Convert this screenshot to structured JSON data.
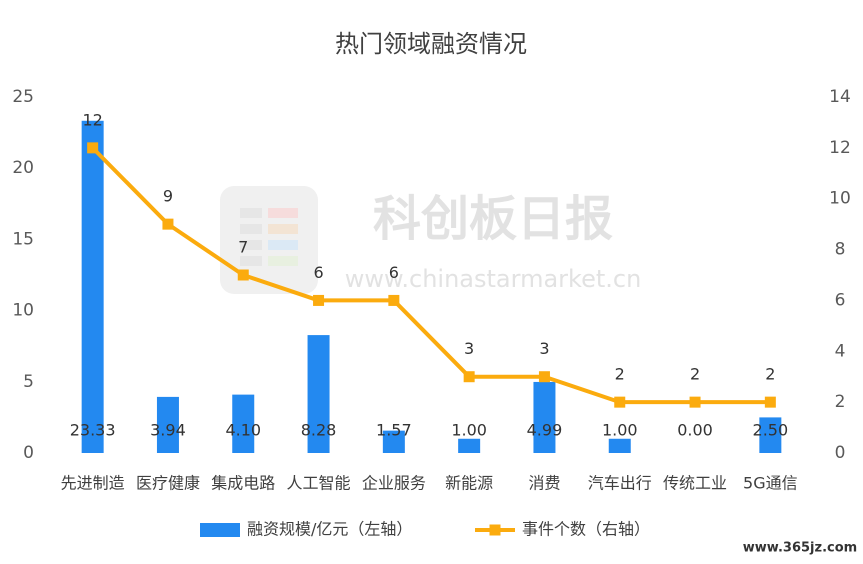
{
  "chart_data": {
    "type": "combo",
    "title": "热门领域融资情况",
    "annotations": [
      "科创板日报",
      "www.chinastarmarket.cn",
      "www.365jz.com"
    ],
    "categories": [
      "先进制造",
      "医疗健康",
      "集成电路",
      "人工智能",
      "企业服务",
      "新能源",
      "消费",
      "汽车出行",
      "传统工业",
      "5G通信"
    ],
    "series": [
      {
        "name": "融资规模/亿元（左轴）",
        "type": "bar",
        "color": "#2389f0",
        "values": [
          23.33,
          3.94,
          4.1,
          8.28,
          1.57,
          1.0,
          4.99,
          1.0,
          0.0,
          2.5
        ],
        "value_labels": [
          "23.33",
          "3.94",
          "4.10",
          "8.28",
          "1.57",
          "1.00",
          "4.99",
          "1.00",
          "0.00",
          "2.50"
        ]
      },
      {
        "name": "事件个数（右轴）",
        "type": "line",
        "axis": "y2",
        "color": "#fbab0e",
        "values": [
          12,
          9,
          7,
          6,
          6,
          3,
          3,
          2,
          2,
          2
        ]
      }
    ],
    "ylim": [
      0,
      25
    ],
    "yticks": [
      0,
      5,
      10,
      15,
      20,
      25
    ],
    "y2lim": [
      0,
      14
    ],
    "y2ticks": [
      0,
      2,
      4,
      6,
      8,
      10,
      12,
      14
    ],
    "grid": false,
    "legend": "bottom"
  }
}
